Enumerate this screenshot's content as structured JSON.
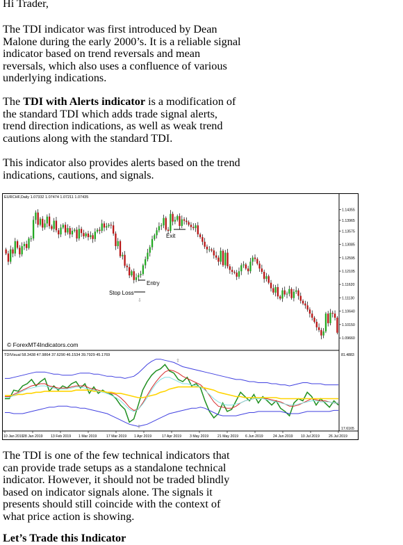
{
  "document": {
    "greeting": "Hi Trader,",
    "para1": "The TDI indicator was first introduced by Dean Malone during the early 2000’s. It is a reliable signal indicator based on trend reversals and mean reversals, which also uses a confluence of various underlying indications.",
    "para2": {
      "pre": "The ",
      "bold": "TDI with Alerts indicator",
      "post": " is a modification of the standard TDI which adds trade signal alerts, trend direction indications, as well as weak trend cautions along with the standard TDI."
    },
    "para3": "This indicator also provides alerts based on the trend indications, cautions, and signals.",
    "para4": "The TDI is one of the few technical indicators that can provide trade setups as a standalone technical indicator. However, it should not be traded blindly based on indicator signals alone. The signals it presents should still coincide with the context of what price action is showing.",
    "para5": "Let’s Trade this Indicator"
  },
  "chart_data": {
    "type": "candlestick",
    "symbol_header": "EURCHF,Daily  1.07332 1.07474 1.07211 1.07435",
    "price_axis_ticks": [
      "1.14355",
      "1.13965",
      "1.13575",
      "1.13085",
      "1.12595",
      "1.12105",
      "1.11620",
      "1.11130",
      "1.10640",
      "1.10150",
      "1.09660"
    ],
    "ylim": [
      1.0946,
      1.1465
    ],
    "candles_close": [
      1.1275,
      1.1245,
      1.129,
      1.1275,
      1.132,
      1.1296,
      1.1272,
      1.1302,
      1.131,
      1.1295,
      1.133,
      1.133,
      1.1398,
      1.1425,
      1.138,
      1.1402,
      1.137,
      1.1385,
      1.141,
      1.1375,
      1.1365,
      1.1395,
      1.136,
      1.1345,
      1.137,
      1.138,
      1.1352,
      1.1368,
      1.1345,
      1.1358,
      1.1362,
      1.133,
      1.1365,
      1.135,
      1.1338,
      1.1348,
      1.1335,
      1.1342,
      1.1328,
      1.1355,
      1.1362,
      1.1358,
      1.1385,
      1.137,
      1.1375,
      1.138,
      1.1378,
      1.1348,
      1.1302,
      1.132,
      1.1265,
      1.127,
      1.123,
      1.1225,
      1.1195,
      1.121,
      1.1178,
      1.1188,
      1.1196,
      1.12,
      1.1232,
      1.1254,
      1.1278,
      1.1298,
      1.1328,
      1.1342,
      1.136,
      1.1375,
      1.1378,
      1.1405,
      1.1362,
      1.1358,
      1.142,
      1.1392,
      1.1398,
      1.1412,
      1.1376,
      1.14,
      1.1395,
      1.139,
      1.138,
      1.1372,
      1.1368,
      1.1378,
      1.1345,
      1.1335,
      1.1318,
      1.13,
      1.129,
      1.129,
      1.1286,
      1.1268,
      1.126,
      1.1245,
      1.1285,
      1.1232,
      1.1278,
      1.1228,
      1.1215,
      1.1208,
      1.1205,
      1.119,
      1.121,
      1.1232,
      1.1235,
      1.122,
      1.121,
      1.1245,
      1.126,
      1.1255,
      1.1238,
      1.122,
      1.1208,
      1.1182,
      1.1192,
      1.1168,
      1.1148,
      1.1132,
      1.1152,
      1.1118,
      1.111,
      1.114,
      1.1125,
      1.1128,
      1.1145,
      1.1112,
      1.1135,
      1.114,
      1.112,
      1.1102,
      1.1092,
      1.1085,
      1.107,
      1.1055,
      1.104,
      1.1025,
      1.1005,
      1.0995,
      1.0975,
      1.099,
      1.1055,
      1.102,
      1.1058,
      1.1055,
      1.104,
      1.0985
    ],
    "annotations": [
      "Exit",
      "Entry",
      "Stop Loss"
    ],
    "watermark": "© ForexMT4Indicators.com",
    "indicator": {
      "header": "TDIVisual 58.3438 47.9864 37.6290 46.1534 39.7929 45.1769",
      "ylim": [
        17.6165,
        81.4883
      ],
      "axis_ticks": [
        "81.4883",
        "17.6165"
      ],
      "series": [
        {
          "color": "#1f8f1f",
          "values": [
            44,
            44,
            52,
            51,
            56,
            58,
            62,
            56,
            60,
            63,
            51,
            56,
            52,
            56,
            54,
            58,
            60,
            54,
            58,
            49,
            55,
            49,
            52,
            49,
            48,
            44,
            38,
            34,
            22,
            25,
            38,
            52,
            60,
            66,
            70,
            72,
            76,
            70,
            68,
            62,
            60,
            64,
            56,
            58,
            54,
            42,
            32,
            26,
            30,
            40,
            32,
            34,
            42,
            50,
            46,
            42,
            48,
            40,
            46,
            42,
            38,
            42,
            35,
            32,
            28,
            40,
            44,
            42,
            50,
            46,
            38,
            44,
            40,
            36,
            42,
            38
          ]
        },
        {
          "color": "#d62828",
          "values": [
            46,
            46,
            48,
            50,
            52,
            54,
            56,
            57,
            58,
            58,
            56,
            55,
            54,
            54,
            54,
            55,
            56,
            56,
            56,
            54,
            53,
            52,
            51,
            50,
            49,
            48,
            45,
            41,
            36,
            33,
            34,
            40,
            47,
            54,
            60,
            65,
            69,
            71,
            70,
            68,
            65,
            63,
            61,
            59,
            57,
            53,
            47,
            41,
            37,
            36,
            35,
            35,
            37,
            40,
            42,
            43,
            44,
            44,
            44,
            44,
            43,
            42,
            41,
            39,
            37,
            37,
            38,
            40,
            42,
            44,
            43,
            42,
            42,
            41,
            40,
            40
          ]
        },
        {
          "color": "#ffd400",
          "values": [
            47,
            47,
            47,
            48,
            48,
            49,
            49,
            50,
            50,
            51,
            51,
            51,
            51,
            51,
            51,
            51,
            52,
            52,
            52,
            52,
            51,
            51,
            51,
            50,
            50,
            49,
            49,
            48,
            47,
            46,
            45,
            45,
            46,
            47,
            48,
            50,
            51,
            53,
            54,
            55,
            55,
            55,
            55,
            55,
            55,
            54,
            53,
            52,
            50,
            49,
            48,
            47,
            46,
            46,
            45,
            45,
            45,
            45,
            45,
            45,
            45,
            45,
            44,
            44,
            44,
            44,
            44,
            44,
            44,
            44,
            44,
            44,
            44,
            44,
            44,
            44
          ]
        },
        {
          "color": "#4040e0",
          "values": [
            63,
            63,
            64,
            65,
            66,
            67,
            68,
            69,
            69,
            69,
            68,
            67,
            67,
            66,
            66,
            66,
            67,
            68,
            68,
            68,
            67,
            67,
            66,
            65,
            65,
            64,
            64,
            63,
            64,
            65,
            68,
            72,
            76,
            79,
            81,
            81,
            80,
            79,
            78,
            76,
            74,
            73,
            72,
            71,
            70,
            69,
            68,
            67,
            66,
            65,
            64,
            63,
            62,
            62,
            61,
            60,
            60,
            59,
            59,
            59,
            58,
            58,
            57,
            57,
            56,
            57,
            58,
            59,
            59,
            58,
            58,
            58,
            57,
            57,
            57,
            57
          ]
        },
        {
          "color": "#4040e0",
          "values": [
            31,
            31,
            30,
            30,
            30,
            31,
            32,
            33,
            34,
            35,
            36,
            36,
            37,
            37,
            37,
            36,
            36,
            35,
            35,
            34,
            33,
            32,
            31,
            30,
            28,
            26,
            24,
            22,
            20,
            19,
            18,
            19,
            20,
            22,
            24,
            26,
            28,
            30,
            31,
            32,
            33,
            34,
            35,
            35,
            36,
            35,
            33,
            31,
            29,
            28,
            28,
            28,
            28,
            29,
            30,
            31,
            31,
            32,
            32,
            32,
            32,
            32,
            32,
            31,
            30,
            30,
            30,
            31,
            32,
            32,
            32,
            32,
            32,
            32,
            33,
            33
          ]
        },
        {
          "color": "#80e0e0",
          "values": [
            45,
            45,
            47,
            49,
            51,
            53,
            54,
            55,
            56,
            56,
            55,
            54,
            53,
            53,
            53,
            54,
            55,
            55,
            54,
            53,
            52,
            51,
            50,
            49,
            47,
            45,
            42,
            38,
            34,
            32,
            34,
            39,
            45,
            52,
            58,
            62,
            64,
            64,
            62,
            60,
            58,
            58,
            57,
            56,
            55,
            52,
            48,
            44,
            41,
            39,
            38,
            38,
            39,
            40,
            42,
            43,
            44,
            44,
            44,
            43,
            42,
            41,
            40,
            39,
            38,
            38,
            39,
            40,
            41,
            42,
            42,
            41,
            41,
            41,
            40,
            40
          ]
        }
      ]
    },
    "x_tick_labels": [
      "10 Jan 2019",
      "28 Jan 2019",
      "13 Feb 2019",
      "1 Mar 2019",
      "17 Mar 2019",
      "1 Apr 2019",
      "17 Apr 2019",
      "3 May 2019",
      "21 May 2019",
      "6 Jun 2019",
      "24 Jun 2019",
      "10 Jul 2019",
      "26 Jul 2019"
    ],
    "colors": {
      "bull": "#22a822",
      "bear": "#b81414",
      "grid": "#c0c0c0"
    }
  }
}
